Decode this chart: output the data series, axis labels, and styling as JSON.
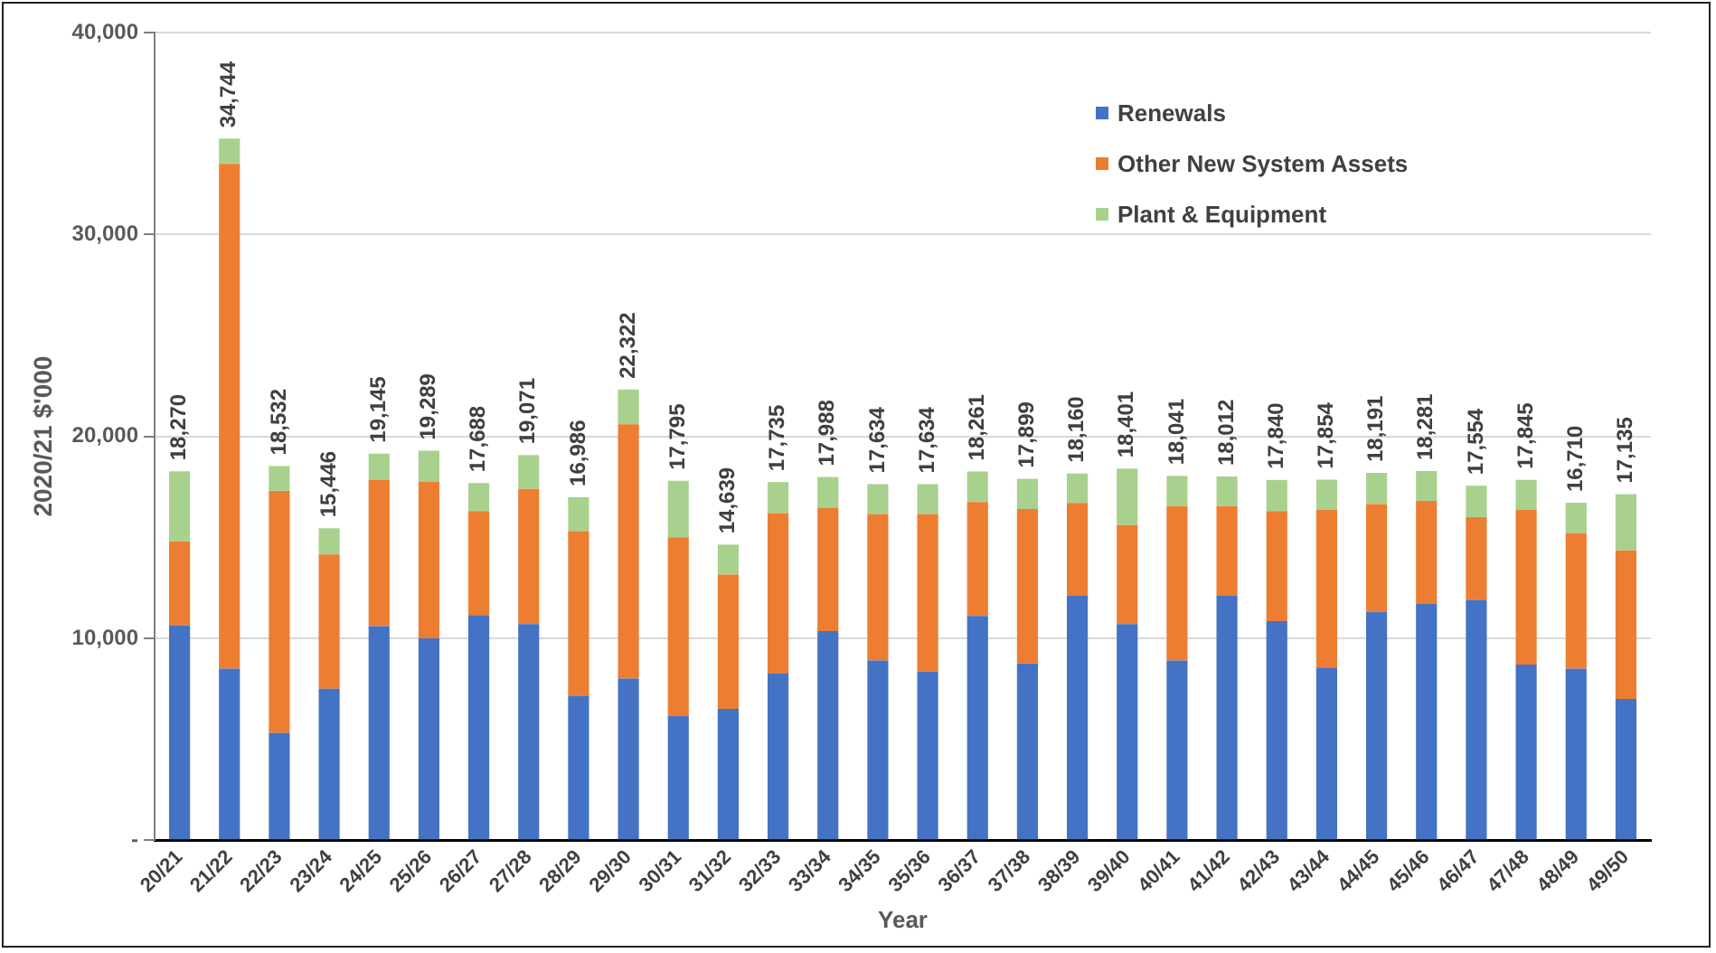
{
  "chart_data": {
    "type": "bar",
    "stacked": true,
    "xlabel": "Year",
    "ylabel": "2020/21 $'000",
    "categories": [
      "20/21",
      "21/22",
      "22/23",
      "23/24",
      "24/25",
      "25/26",
      "26/27",
      "27/28",
      "28/29",
      "29/30",
      "30/31",
      "31/32",
      "32/33",
      "33/34",
      "34/35",
      "35/36",
      "36/37",
      "37/38",
      "38/39",
      "39/40",
      "40/41",
      "41/42",
      "42/43",
      "43/44",
      "44/45",
      "45/46",
      "46/47",
      "47/48",
      "48/49",
      "49/50"
    ],
    "series": [
      {
        "name": "Renewals",
        "color": "#4472c4",
        "values": [
          10650,
          8500,
          5300,
          7500,
          10600,
          10000,
          11150,
          10700,
          7150,
          8000,
          6150,
          6500,
          8250,
          10350,
          8900,
          8350,
          11100,
          8750,
          12100,
          10700,
          8900,
          12100,
          10850,
          8550,
          11300,
          11700,
          11900,
          8700,
          8500,
          7000
        ]
      },
      {
        "name": "Other New System Assets",
        "color": "#ed7d31",
        "values": [
          4150,
          25000,
          12000,
          6650,
          7250,
          7750,
          5150,
          6700,
          8150,
          12600,
          8850,
          6650,
          7950,
          6100,
          7250,
          7800,
          5650,
          7650,
          4600,
          4900,
          7650,
          4450,
          5450,
          7800,
          5350,
          5100,
          4100,
          7650,
          6700,
          7350
        ]
      },
      {
        "name": "Plant & Equipment",
        "color": "#a9d18e",
        "values": [
          3470,
          1244,
          1232,
          1296,
          1295,
          1539,
          1388,
          1671,
          1686,
          1722,
          2795,
          1489,
          1535,
          1538,
          1484,
          1484,
          1511,
          1499,
          1460,
          2801,
          1491,
          1462,
          1540,
          1504,
          1541,
          1481,
          1554,
          1495,
          1510,
          2785
        ]
      }
    ],
    "totals": [
      "18,270",
      "34,744",
      "18,532",
      "15,446",
      "19,145",
      "19,289",
      "17,688",
      "19,071",
      "16,986",
      "22,322",
      "17,795",
      "14,639",
      "17,735",
      "17,988",
      "17,634",
      "17,634",
      "18,261",
      "17,899",
      "18,160",
      "18,401",
      "18,041",
      "18,012",
      "17,840",
      "17,854",
      "18,191",
      "18,281",
      "17,554",
      "17,845",
      "16,710",
      "17,135"
    ],
    "ylim": [
      0,
      40000
    ],
    "yticks": [
      {
        "value": 0,
        "label": "-"
      },
      {
        "value": 10000,
        "label": "10,000"
      },
      {
        "value": 20000,
        "label": "20,000"
      },
      {
        "value": 30000,
        "label": "30,000"
      },
      {
        "value": 40000,
        "label": "40,000"
      }
    ],
    "grid": "y",
    "legend": "top right"
  }
}
